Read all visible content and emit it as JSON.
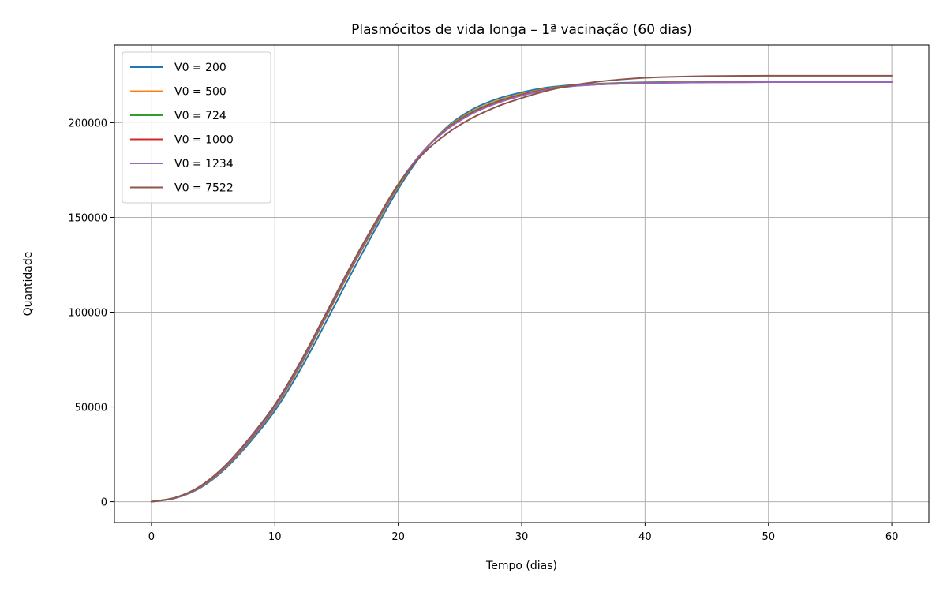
{
  "chart_data": {
    "type": "line",
    "title": "Plasmócitos de vida longa – 1ª vacinação (60 dias)",
    "xlabel": "Tempo (dias)",
    "ylabel": "Quantidade",
    "xlim": [
      -3,
      63
    ],
    "ylim": [
      -11000,
      241000
    ],
    "xticks": [
      0,
      10,
      20,
      30,
      40,
      50,
      60
    ],
    "yticks": [
      0,
      50000,
      100000,
      150000,
      200000
    ],
    "grid": true,
    "legend_position": "top-left",
    "x": [
      0,
      2,
      4,
      6,
      8,
      10,
      12,
      14,
      16,
      18,
      20,
      22,
      24,
      26,
      28,
      30,
      32,
      34,
      36,
      38,
      40,
      42,
      45,
      50,
      55,
      60
    ],
    "series": [
      {
        "name": "V0 = 200",
        "color": "#1f77b4",
        "values": [
          0,
          2000,
          7500,
          17500,
          31500,
          48000,
          69000,
          93000,
          118000,
          142000,
          165000,
          184000,
          198000,
          207000,
          212500,
          216000,
          218500,
          219800,
          220500,
          221000,
          221300,
          221500,
          221700,
          221800,
          221800,
          221800
        ]
      },
      {
        "name": "V0 = 500",
        "color": "#ff7f0e",
        "values": [
          0,
          2100,
          7800,
          18100,
          32500,
          49500,
          71000,
          95500,
          120500,
          144000,
          166500,
          184500,
          197500,
          206000,
          211500,
          215200,
          217900,
          219500,
          220300,
          220800,
          221100,
          221300,
          221500,
          221600,
          221600,
          221600
        ]
      },
      {
        "name": "V0 = 724",
        "color": "#2ca02c",
        "values": [
          0,
          2150,
          7900,
          18300,
          32800,
          49900,
          71500,
          96000,
          121000,
          144500,
          167000,
          184700,
          197200,
          205600,
          211100,
          214900,
          217700,
          219400,
          220200,
          220700,
          221000,
          221200,
          221400,
          221500,
          221500,
          221500
        ]
      },
      {
        "name": "V0 = 1000",
        "color": "#d62728",
        "values": [
          0,
          2200,
          8000,
          18500,
          33000,
          50200,
          71900,
          96400,
          121400,
          144900,
          167300,
          184800,
          196900,
          205200,
          210700,
          214600,
          217500,
          219300,
          220100,
          220600,
          220900,
          221100,
          221300,
          221400,
          221400,
          221400
        ]
      },
      {
        "name": "V0 = 1234",
        "color": "#9467bd",
        "values": [
          0,
          2200,
          8100,
          18600,
          33200,
          50400,
          72100,
          96700,
          121600,
          145100,
          167400,
          184700,
          196600,
          204800,
          210300,
          214300,
          217300,
          219200,
          220100,
          220600,
          220900,
          221100,
          221300,
          221400,
          221400,
          221400
        ]
      },
      {
        "name": "V0 = 7522",
        "color": "#8c564b",
        "values": [
          0,
          2300,
          8400,
          19200,
          34000,
          51200,
          73000,
          97500,
          122500,
          145800,
          167500,
          183500,
          194500,
          202500,
          208500,
          213000,
          216800,
          219600,
          221500,
          222800,
          223700,
          224200,
          224600,
          224800,
          224800,
          224800
        ]
      }
    ]
  }
}
